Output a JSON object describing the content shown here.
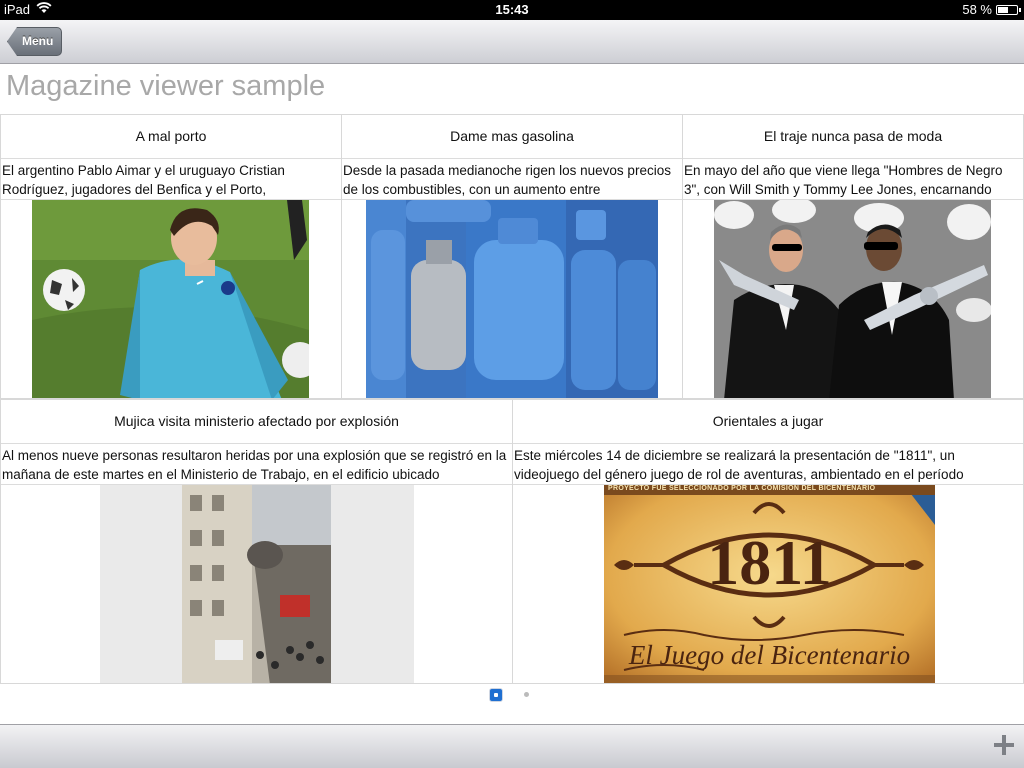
{
  "status_bar": {
    "device": "iPad",
    "time": "15:43",
    "battery": "58 %",
    "battery_level": 0.58
  },
  "toolbar": {
    "back_label": "Menu"
  },
  "page_title": "Magazine viewer sample",
  "articles": [
    {
      "title": "A mal porto",
      "excerpt": "El argentino Pablo Aimar y el uruguayo Cristian Rodríguez, jugadores del Benfica y el Porto,"
    },
    {
      "title": "Dame mas gasolina",
      "excerpt": "Desde la pasada medianoche rigen los nuevos precios de los combustibles, con un aumento entre"
    },
    {
      "title": "El traje nunca pasa de moda",
      "excerpt": "En mayo del año que viene llega \"Hombres de Negro 3\", con Will Smith y Tommy Lee Jones, encarnando"
    },
    {
      "title": "Mujica visita ministerio afectado por explosión",
      "excerpt": "Al menos nueve personas resultaron heridas por una explosión que se registró en la mañana de este martes en el Ministerio de Trabajo, en el edificio ubicado"
    },
    {
      "title": "Orientales a jugar",
      "excerpt": "Este miércoles 14 de diciembre se realizará la presentación de \"1811\", un videojuego del género juego de rol de aventuras, ambientado en el período",
      "image_banner": "PROYECTO FUE SELECCIONADO POR LA COMISION DEL BICENTENARIO",
      "image_number": "1811",
      "image_caption": "El Juego del Bicentenario"
    }
  ],
  "pager": {
    "current_page": 1,
    "total_pages": 2
  }
}
